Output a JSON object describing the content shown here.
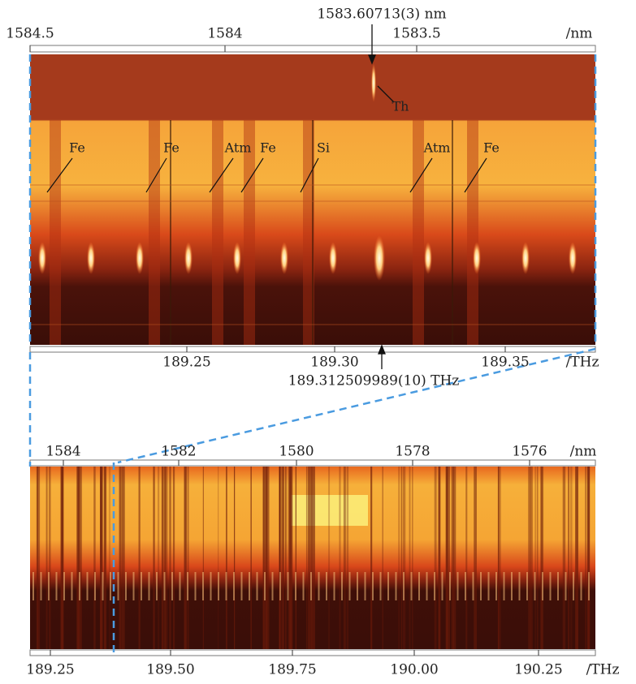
{
  "top_panel": {
    "wavelength_axis": {
      "ticks": [
        "1584.5",
        "1584",
        "1583.5"
      ],
      "unit": "/nm"
    },
    "frequency_axis": {
      "ticks": [
        "189.25",
        "189.30",
        "189.35"
      ],
      "unit": "/THz"
    },
    "wavelength_marker": "1583.60713(3) nm",
    "frequency_marker": "189.312509989(10) THz",
    "reference_label": "Th",
    "line_labels": [
      "Fe",
      "Fe",
      "Atm",
      "Fe",
      "Si",
      "Atm",
      "Fe"
    ]
  },
  "bottom_panel": {
    "wavelength_axis": {
      "ticks": [
        "1584",
        "1582",
        "1580",
        "1578",
        "1576"
      ],
      "unit": "/nm"
    },
    "frequency_axis": {
      "ticks": [
        "189.25",
        "189.50",
        "189.75",
        "190.00",
        "190.25"
      ],
      "unit": "/THz"
    }
  }
}
